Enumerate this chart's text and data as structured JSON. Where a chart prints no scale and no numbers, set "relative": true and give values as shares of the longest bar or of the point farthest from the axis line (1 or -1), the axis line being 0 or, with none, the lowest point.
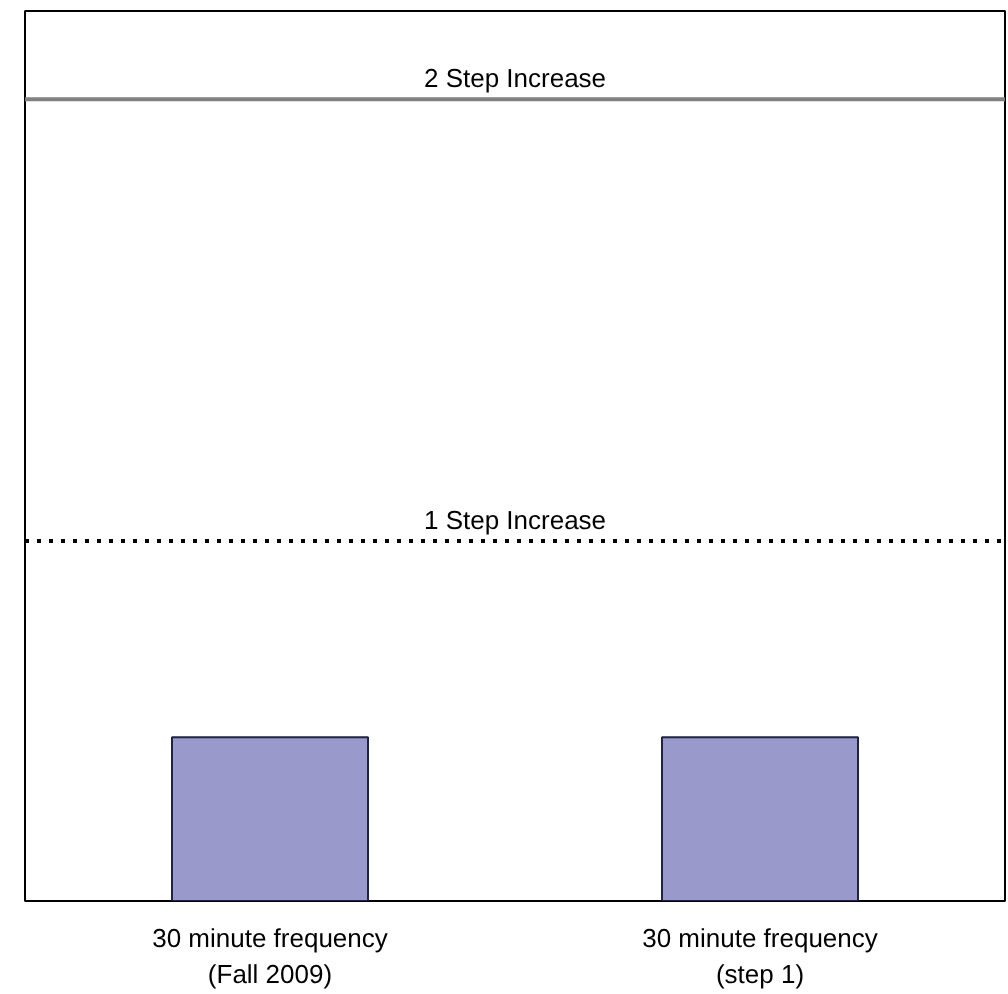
{
  "chart_data": {
    "type": "bar",
    "relative": true,
    "categories": [
      "30 minute frequency\n(Fall 2009)",
      "30 minute frequency\n(step 1)"
    ],
    "values": [
      1,
      1
    ],
    "color": "#9999cc",
    "ref_lines": [
      {
        "axis": "y",
        "value": 2.2,
        "label": "1 Step Increase",
        "color": "#000000",
        "line_style": "dotted"
      },
      {
        "axis": "y",
        "value": 4.9,
        "label": "2 Step Increase",
        "color": "#808080",
        "line_style": "solid"
      }
    ],
    "grid": false
  }
}
